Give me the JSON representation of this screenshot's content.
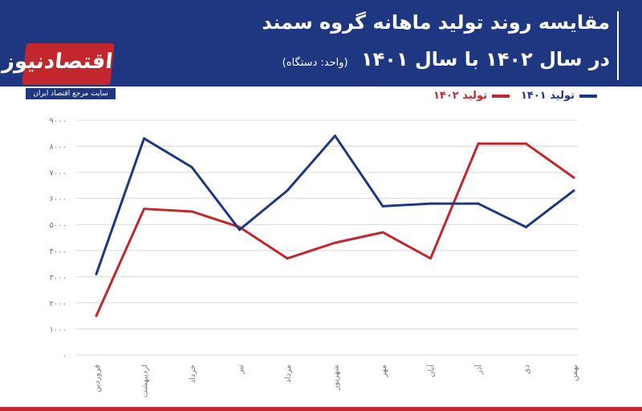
{
  "header": {
    "title_line1": "مقایسه روند تولید ماهانه گروه سمند",
    "title_line2": "در سال ۱۴۰۲ با سال ۱۴۰۱",
    "unit_note": "(واحد: دستگاه)"
  },
  "logo": {
    "text": "اقتصادنیوز",
    "subtitle": "سایت مرجع اقتصاد ایران"
  },
  "colors": {
    "series_1401": "#1f3780",
    "series_1402": "#c1272d",
    "header_bg": "#1f3780",
    "accent": "#c1272d"
  },
  "chart_data": {
    "type": "line",
    "title": "مقایسه روند تولید ماهانه گروه سمند در سال ۱۴۰۲ با سال ۱۴۰۱",
    "categories": [
      "فروردین",
      "اردیبهشت",
      "خرداد",
      "تیر",
      "مرداد",
      "شهریور",
      "مهر",
      "آبان",
      "آذر",
      "دی",
      "بهمن"
    ],
    "yticks": [
      "۰",
      "۱۰۰۰",
      "۲۰۰۰",
      "۳۰۰۰",
      "۴۰۰۰",
      "۵۰۰۰",
      "۶۰۰۰",
      "۷۰۰۰",
      "۸۰۰۰",
      "۹۰۰۰"
    ],
    "ylim": [
      0,
      9000
    ],
    "grid": true,
    "legend_position": "top-right",
    "series": [
      {
        "name": "تولید ۱۴۰۱",
        "values": [
          3100,
          8300,
          7200,
          4800,
          6300,
          8400,
          5700,
          5800,
          5800,
          4900,
          6300
        ]
      },
      {
        "name": "تولید ۱۴۰۲",
        "values": [
          1500,
          5600,
          5500,
          4900,
          3700,
          4300,
          4700,
          3700,
          8100,
          8100,
          6800
        ]
      }
    ]
  }
}
